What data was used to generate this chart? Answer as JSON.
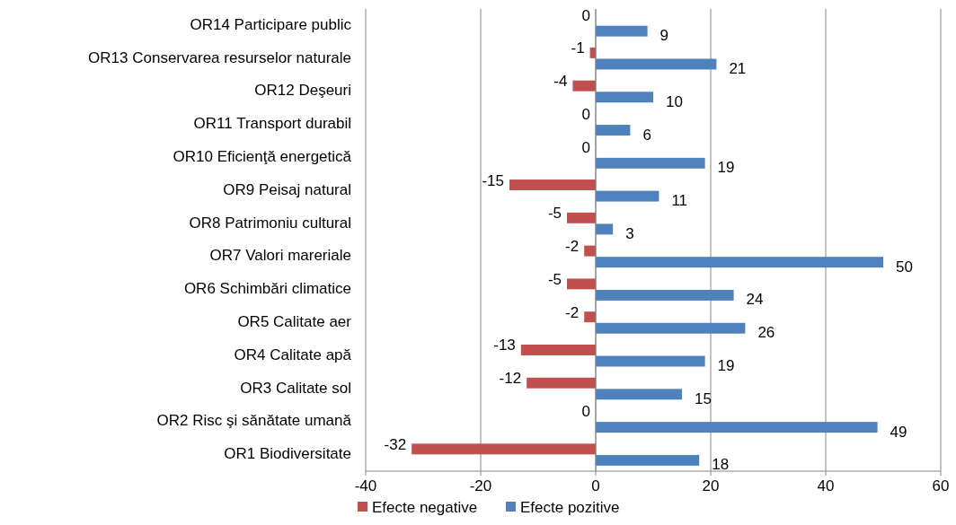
{
  "chart_data": {
    "type": "bar",
    "orientation": "horizontal",
    "categories": [
      "OR14 Participare public",
      "OR13 Conservarea resurselor naturale",
      "OR12 Deşeuri",
      "OR11 Transport durabil",
      "OR10 Eficienţă energetică",
      "OR9 Peisaj natural",
      "OR8 Patrimoniu cultural",
      "OR7 Valori mareriale",
      "OR6 Schimbări climatice",
      "OR5 Calitate aer",
      "OR4 Calitate apă",
      "OR3 Calitate sol",
      "OR2 Risc şi sănătate umană",
      "OR1 Biodiversitate"
    ],
    "series": [
      {
        "name": "Efecte negative",
        "color": "#c0504d",
        "values": [
          0,
          -1,
          -4,
          0,
          0,
          -15,
          -5,
          -2,
          -5,
          -2,
          -13,
          -12,
          0,
          -32
        ]
      },
      {
        "name": "Efecte pozitive",
        "color": "#4f81bd",
        "values": [
          9,
          21,
          10,
          6,
          19,
          11,
          3,
          50,
          24,
          26,
          19,
          15,
          49,
          18
        ]
      }
    ],
    "xlim": [
      -40,
      60
    ],
    "xticks": [
      -40,
      -20,
      0,
      20,
      40,
      60
    ],
    "grid": "x",
    "legend": "bottom",
    "data_labels": true
  }
}
